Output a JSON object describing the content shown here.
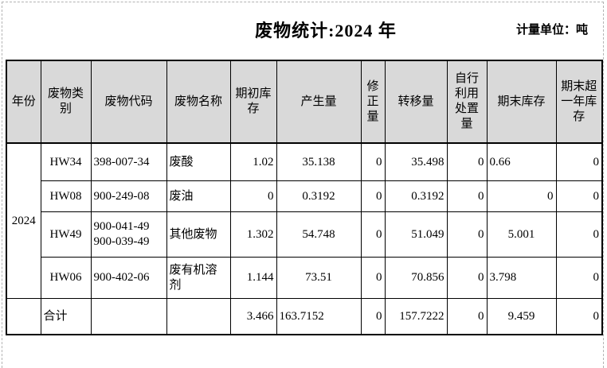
{
  "sheet": {
    "title": "废物统计:2024 年",
    "unit_label": "计量单位：吨"
  },
  "table": {
    "year": "2024",
    "headers": [
      {
        "key": "year",
        "label": "年份"
      },
      {
        "key": "category",
        "label": "废物类\n别"
      },
      {
        "key": "code",
        "label": "废物代码"
      },
      {
        "key": "name",
        "label": "废物名称"
      },
      {
        "key": "initial",
        "label": "期初库\n存"
      },
      {
        "key": "generated",
        "label": "产生量"
      },
      {
        "key": "correction",
        "label": "修\n正\n量"
      },
      {
        "key": "transferred",
        "label": "转移量"
      },
      {
        "key": "self_disposal",
        "label": "自行\n利用\n处置\n量"
      },
      {
        "key": "ending",
        "label": "期末库存"
      },
      {
        "key": "over_year",
        "label": "期末超\n一年库\n存"
      }
    ],
    "columns": [
      {
        "key": "category",
        "align": "center"
      },
      {
        "key": "code",
        "align": "left"
      },
      {
        "key": "name",
        "align": "left"
      },
      {
        "key": "initial",
        "align": "right"
      },
      {
        "key": "generated",
        "align": "center"
      },
      {
        "key": "correction",
        "align": "right"
      },
      {
        "key": "transferred",
        "align": "right"
      },
      {
        "key": "self_disposal",
        "align": "right"
      },
      {
        "key": "ending",
        "align": "center"
      },
      {
        "key": "over_year",
        "align": "right"
      }
    ],
    "rows": [
      {
        "category": "HW34",
        "code": "398-007-34",
        "name": "废酸",
        "initial": "1.02",
        "generated": "35.138",
        "correction": "0",
        "transferred": "35.498",
        "self_disposal": "0",
        "ending": {
          "v": "0.66",
          "align": "left"
        },
        "over_year": "0"
      },
      {
        "category": "HW08",
        "code": "900-249-08",
        "name": "废油",
        "initial": "0",
        "generated": "0.3192",
        "correction": "0",
        "transferred": "0.3192",
        "self_disposal": "0",
        "ending": {
          "v": "0",
          "align": "right"
        },
        "over_year": "0"
      },
      {
        "category": "HW49",
        "code": "900-041-49\n900-039-49",
        "name": "其他废物",
        "initial": "1.302",
        "generated": "54.748",
        "correction": "0",
        "transferred": "51.049",
        "self_disposal": "0",
        "ending": "5.001",
        "over_year": "0"
      },
      {
        "category": "HW06",
        "code": "900-402-06",
        "name": "废有机溶\n剂",
        "initial": "1.144",
        "generated": "73.51",
        "correction": "0",
        "transferred": "70.856",
        "self_disposal": "0",
        "ending": {
          "v": "3.798",
          "align": "left"
        },
        "over_year": "0"
      }
    ],
    "total_row": {
      "year": "",
      "category": {
        "v": "合计",
        "align": "left"
      },
      "code": "",
      "name": "",
      "initial": "3.466",
      "generated": {
        "v": "163.7152",
        "align": "left"
      },
      "correction": "0",
      "transferred": "157.7222",
      "self_disposal": "0",
      "ending": "9.459",
      "over_year": "0"
    }
  }
}
